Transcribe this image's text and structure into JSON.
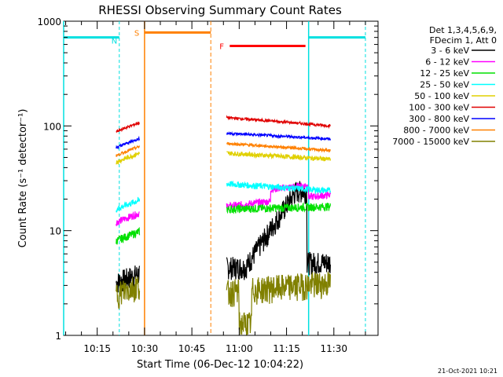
{
  "chart_data": {
    "type": "line",
    "title": "RHESSI Observing Summary Count Rates",
    "xlabel": "Start Time (06-Dec-12 10:04:22)",
    "ylabel": "Count Rate (s⁻¹ detector⁻¹)",
    "yscale": "log",
    "xlim": [
      "10:04:22",
      "10:44:00"
    ],
    "ylim": [
      1,
      1000
    ],
    "x_ticks": [
      "10:15",
      "10:30",
      "10:45",
      "11:00",
      "11:15",
      "11:30"
    ],
    "y_ticks": [
      "1",
      "10",
      "100",
      "1000"
    ],
    "legend": {
      "position": "top-right",
      "header_lines": [
        "Det 1,3,4,5,6,9,",
        "FDecim 1, Att 0"
      ]
    },
    "series": [
      {
        "name": "3 - 6 keV",
        "color": "#000000"
      },
      {
        "name": "6 - 12 keV",
        "color": "#ff00ff"
      },
      {
        "name": "12 - 25 keV",
        "color": "#00e000"
      },
      {
        "name": "25 - 50 keV",
        "color": "#00ffff"
      },
      {
        "name": "50 - 100 keV",
        "color": "#e0d000"
      },
      {
        "name": "100 - 300 keV",
        "color": "#e00000"
      },
      {
        "name": "300 - 800 keV",
        "color": "#0000ff"
      },
      {
        "name": "800 - 7000 keV",
        "color": "#ff8000"
      },
      {
        "name": "7000 - 15000 keV",
        "color": "#808000"
      }
    ],
    "orbit_markers": [
      {
        "label": "N",
        "color": "#00e0e0",
        "start": "10:04:22",
        "end": "10:22:00",
        "level": 700
      },
      {
        "label": "S",
        "color": "#ff8000",
        "start": "10:30:00",
        "end": "10:51:00",
        "level": 780
      },
      {
        "label": "F",
        "color": "#ff0000",
        "start": "10:57:00",
        "end": "11:21:00",
        "level": 580
      },
      {
        "label": "",
        "color": "#00e0e0",
        "start": "11:22:00",
        "end": "11:40:00",
        "level": 700
      }
    ],
    "timestamp": "21-Oct-2021 10:21"
  }
}
